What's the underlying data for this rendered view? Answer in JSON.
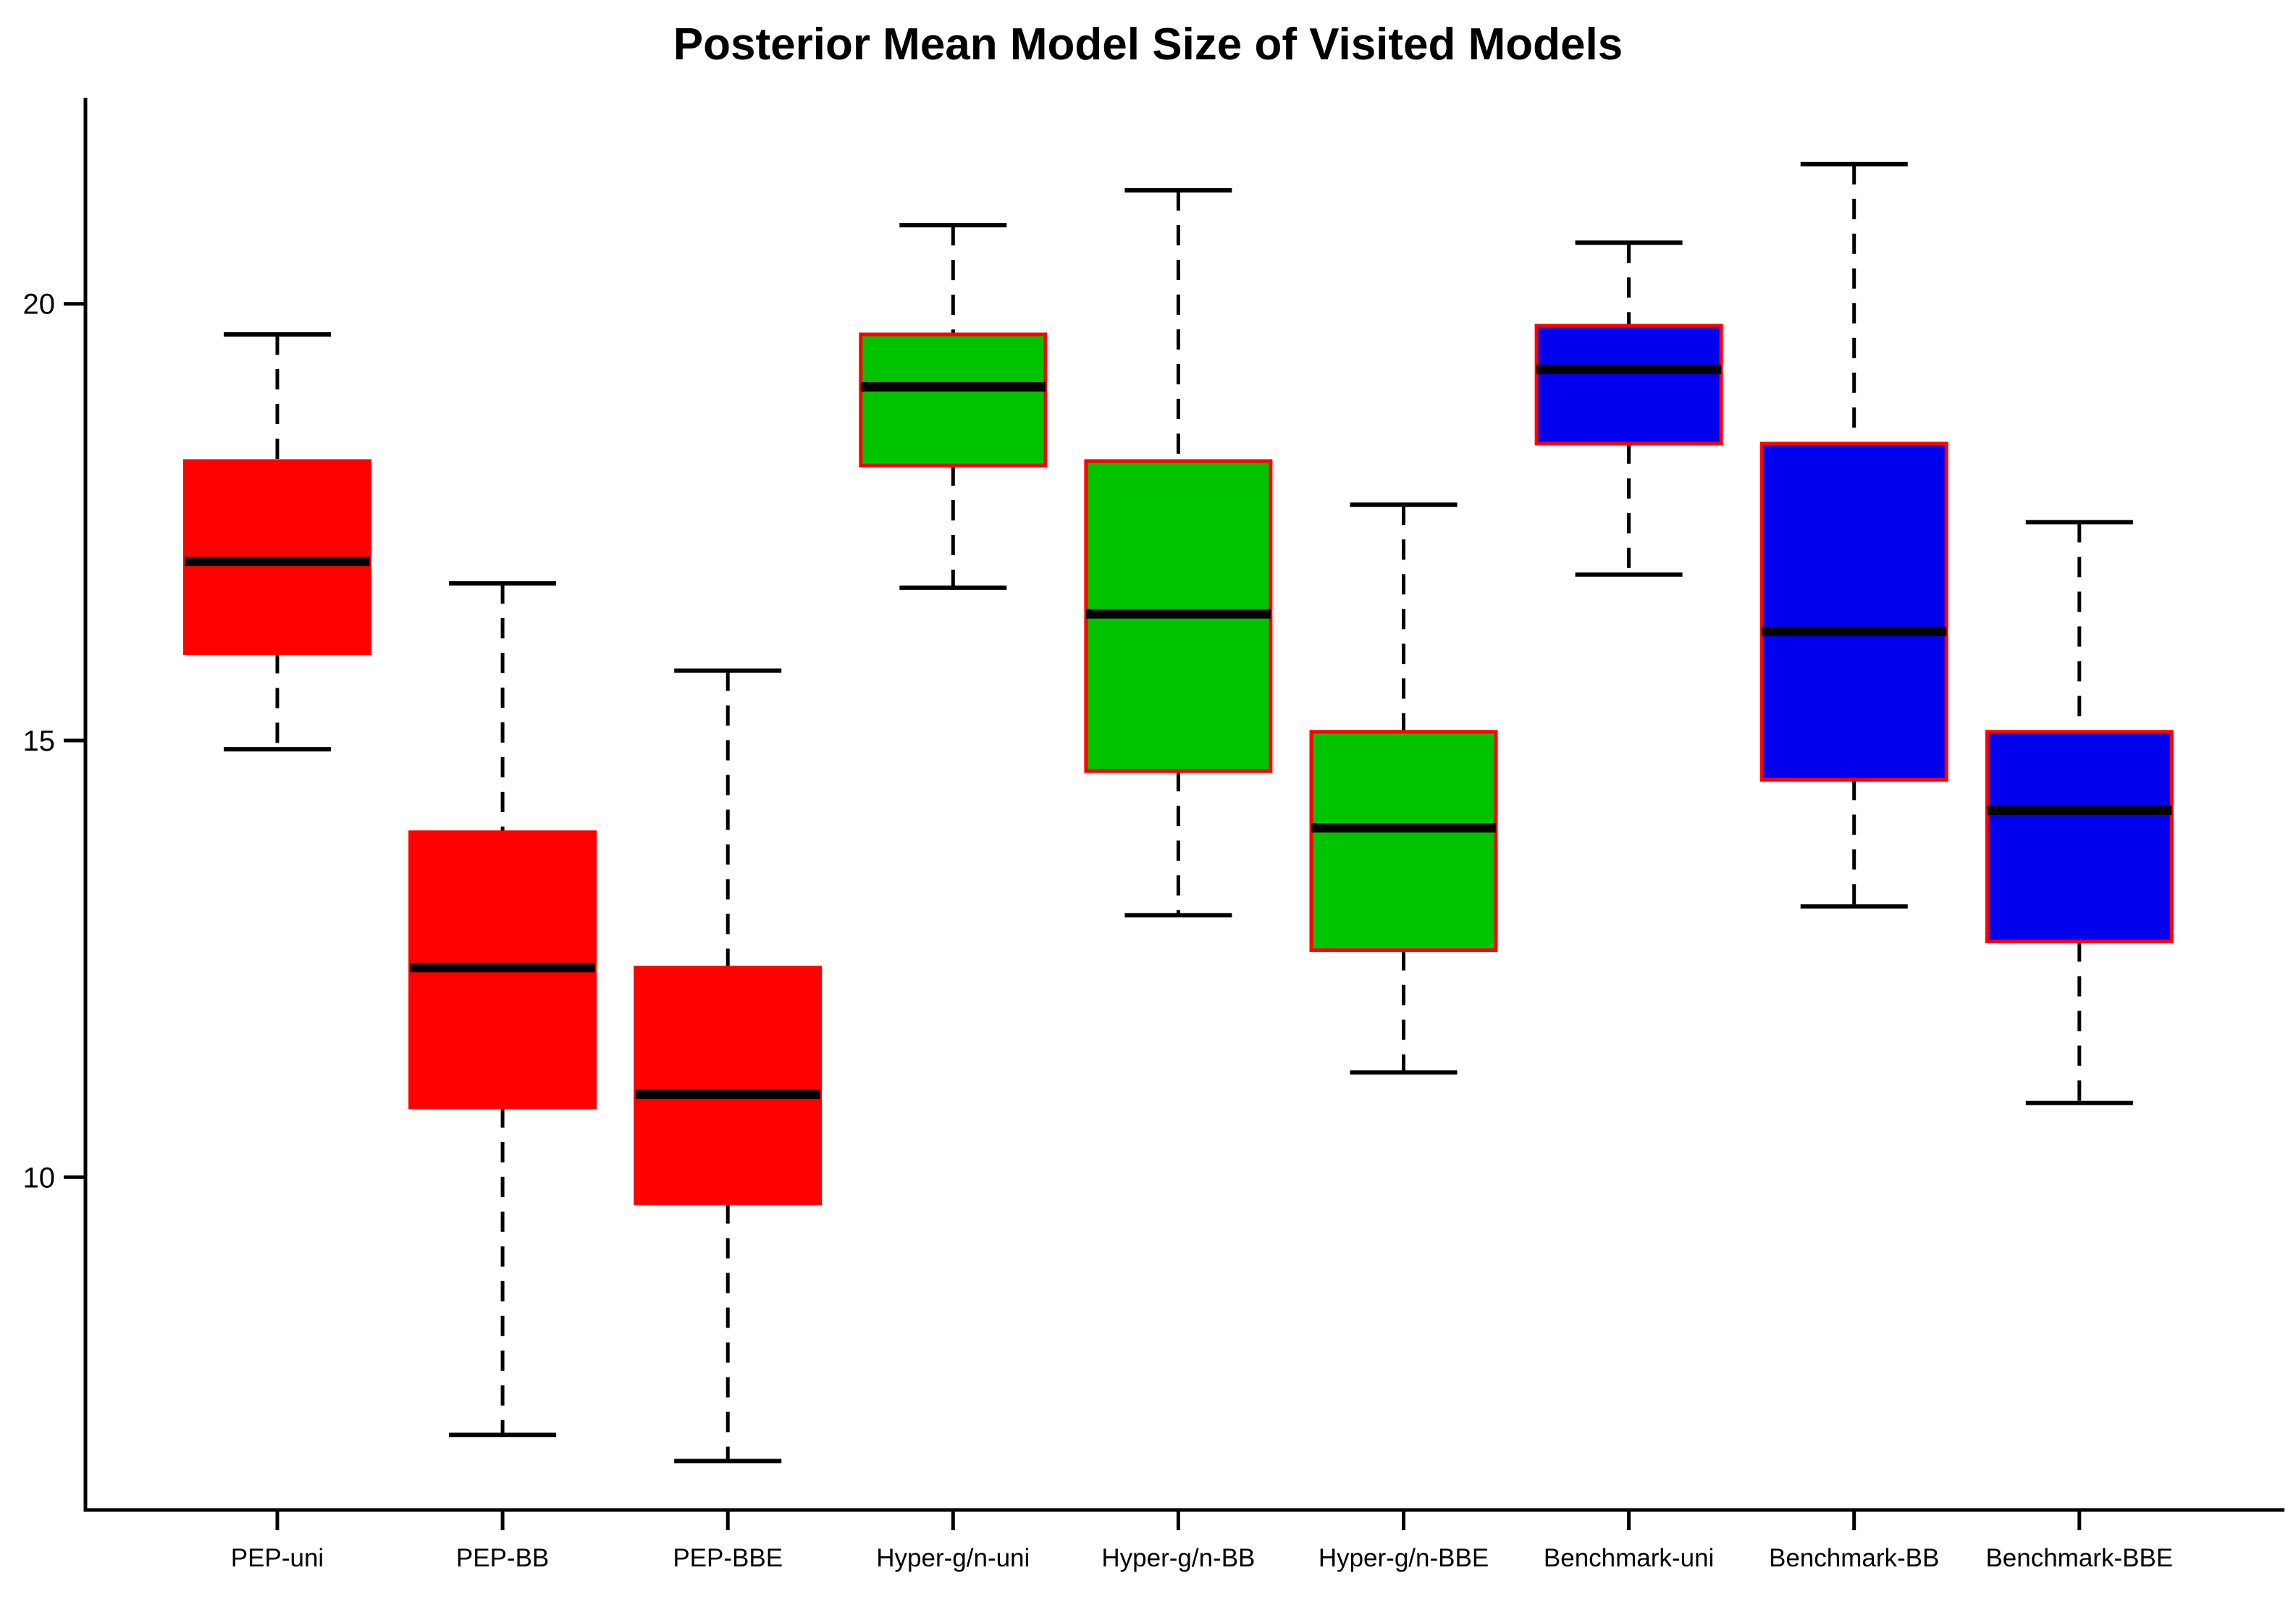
{
  "page": {
    "background": "#FFFFFF"
  },
  "chart_data": {
    "type": "boxplot",
    "title": "Posterior Mean Model Size of Visited Models",
    "xlabel": "",
    "ylabel": "",
    "ylim": [
      6.19,
      22.36
    ],
    "y_ticks": [
      10,
      15,
      20
    ],
    "grid": false,
    "legend": false,
    "categories": [
      "PEP-uni",
      "PEP-BB",
      "PEP-BBE",
      "Hyper-g/n-uni",
      "Hyper-g/n-BB",
      "Hyper-g/n-BBE",
      "Benchmark-uni",
      "Benchmark-BB",
      "Benchmark-BBE"
    ],
    "series": [
      {
        "name": "PEP-uni",
        "group": "PEP",
        "fill": "#FF0000",
        "whisker_low": 14.9,
        "q1": 16.0,
        "median": 17.05,
        "q3": 18.2,
        "whisker_high": 19.65
      },
      {
        "name": "PEP-BB",
        "group": "PEP",
        "fill": "#FF0000",
        "whisker_low": 7.05,
        "q1": 10.8,
        "median": 12.4,
        "q3": 13.95,
        "whisker_high": 16.8
      },
      {
        "name": "PEP-BBE",
        "group": "PEP",
        "fill": "#FF0000",
        "whisker_low": 6.75,
        "q1": 9.7,
        "median": 10.95,
        "q3": 12.4,
        "whisker_high": 15.8
      },
      {
        "name": "Hyper-g/n-uni",
        "group": "Hyper-g/n",
        "fill": "#00C400",
        "whisker_low": 16.75,
        "q1": 18.15,
        "median": 19.05,
        "q3": 19.65,
        "whisker_high": 20.9
      },
      {
        "name": "Hyper-g/n-BB",
        "group": "Hyper-g/n",
        "fill": "#00C400",
        "whisker_low": 13.0,
        "q1": 14.65,
        "median": 16.45,
        "q3": 18.2,
        "whisker_high": 21.3
      },
      {
        "name": "Hyper-g/n-BBE",
        "group": "Hyper-g/n",
        "fill": "#00C400",
        "whisker_low": 11.2,
        "q1": 12.6,
        "median": 14.0,
        "q3": 15.1,
        "whisker_high": 17.7
      },
      {
        "name": "Benchmark-uni",
        "group": "Benchmark",
        "fill": "#0000EE",
        "whisker_low": 16.9,
        "q1": 18.4,
        "median": 19.25,
        "q3": 19.75,
        "whisker_high": 20.7
      },
      {
        "name": "Benchmark-BB",
        "group": "Benchmark",
        "fill": "#0000EE",
        "whisker_low": 13.1,
        "q1": 14.55,
        "median": 16.25,
        "q3": 18.4,
        "whisker_high": 21.6
      },
      {
        "name": "Benchmark-BBE",
        "group": "Benchmark",
        "fill": "#0000EE",
        "whisker_low": 10.85,
        "q1": 12.7,
        "median": 14.2,
        "q3": 15.1,
        "whisker_high": 17.5
      }
    ],
    "style": {
      "box_border_color": "#FF0000",
      "median_color": "#000000",
      "whisker_color": "#000000",
      "axis_color": "#000000",
      "text_color": "#000000",
      "red_fill": "#FF0000",
      "green_fill": "#00C400",
      "blue_fill": "#0000EE"
    }
  }
}
